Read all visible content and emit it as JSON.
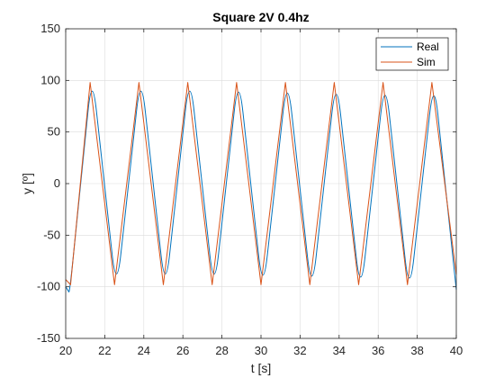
{
  "chart_data": {
    "type": "line",
    "title": "Square 2V 0.4hz",
    "xlabel": "t [s]",
    "ylabel": "y [º]",
    "xlim": [
      20,
      40
    ],
    "ylim": [
      -150,
      150
    ],
    "xticks": [
      20,
      22,
      24,
      26,
      28,
      30,
      32,
      34,
      36,
      38,
      40
    ],
    "yticks": [
      -150,
      -100,
      -50,
      0,
      50,
      100,
      150
    ],
    "grid": true,
    "legend_position": "top-right",
    "series": [
      {
        "name": "Real",
        "color": "#0072BD",
        "peaks": [
          {
            "t": 20.2,
            "y": -106
          },
          {
            "t": 21.35,
            "y": 109
          },
          {
            "t": 22.6,
            "y": -107
          },
          {
            "t": 23.85,
            "y": 109
          },
          {
            "t": 25.1,
            "y": -107
          },
          {
            "t": 26.35,
            "y": 109
          },
          {
            "t": 27.6,
            "y": -107
          },
          {
            "t": 28.85,
            "y": 108
          },
          {
            "t": 30.1,
            "y": -108
          },
          {
            "t": 31.35,
            "y": 107
          },
          {
            "t": 32.6,
            "y": -109
          },
          {
            "t": 33.85,
            "y": 106
          },
          {
            "t": 35.1,
            "y": -110
          },
          {
            "t": 36.35,
            "y": 105
          },
          {
            "t": 37.6,
            "y": -111
          },
          {
            "t": 38.85,
            "y": 104
          }
        ],
        "start": {
          "t": 20,
          "y": -100
        },
        "end": {
          "t": 40,
          "y": -103
        }
      },
      {
        "name": "Sim",
        "color": "#D95319",
        "peaks": [
          {
            "t": 20.25,
            "y": -98
          },
          {
            "t": 21.25,
            "y": 98
          },
          {
            "t": 22.5,
            "y": -98
          },
          {
            "t": 23.75,
            "y": 98
          },
          {
            "t": 25.0,
            "y": -98
          },
          {
            "t": 26.25,
            "y": 98
          },
          {
            "t": 27.5,
            "y": -98
          },
          {
            "t": 28.75,
            "y": 98
          },
          {
            "t": 30.0,
            "y": -98
          },
          {
            "t": 31.25,
            "y": 98
          },
          {
            "t": 32.5,
            "y": -98
          },
          {
            "t": 33.75,
            "y": 98
          },
          {
            "t": 35.0,
            "y": -98
          },
          {
            "t": 36.25,
            "y": 98
          },
          {
            "t": 37.5,
            "y": -98
          },
          {
            "t": 38.75,
            "y": 98
          }
        ],
        "start": {
          "t": 20,
          "y": -93
        },
        "end": {
          "t": 40,
          "y": -88
        }
      }
    ]
  }
}
